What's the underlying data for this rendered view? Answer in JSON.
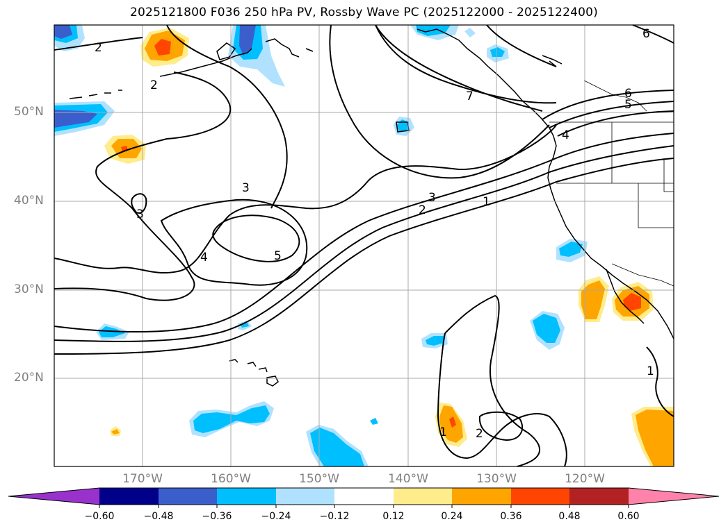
{
  "title": "2025121800 F036 250 hPa PV, Rossby Wave PC (2025122000 - 2025122400)",
  "map": {
    "lat_labels": [
      "50°N",
      "40°N",
      "30°N",
      "20°N"
    ],
    "lon_labels": [
      "170°W",
      "160°W",
      "150°W",
      "140°W",
      "130°W",
      "120°W"
    ],
    "contour_labels": [
      "2",
      "2",
      "3",
      "3",
      "4",
      "5",
      "3",
      "2",
      "1",
      "7",
      "6",
      "5",
      "4",
      "6",
      "1",
      "2",
      "1"
    ]
  },
  "colorbar": {
    "tick_labels": [
      "−0.60",
      "−0.48",
      "−0.36",
      "−0.24",
      "−0.12",
      "0.12",
      "0.24",
      "0.36",
      "0.48",
      "0.60"
    ],
    "colors": [
      "#9932cc",
      "#00008b",
      "#3a5fcd",
      "#00bfff",
      "#b0e2ff",
      "#ffffff",
      "#ffec8b",
      "#ffa500",
      "#ff4500",
      "#b22222",
      "#ff82ab"
    ]
  }
}
